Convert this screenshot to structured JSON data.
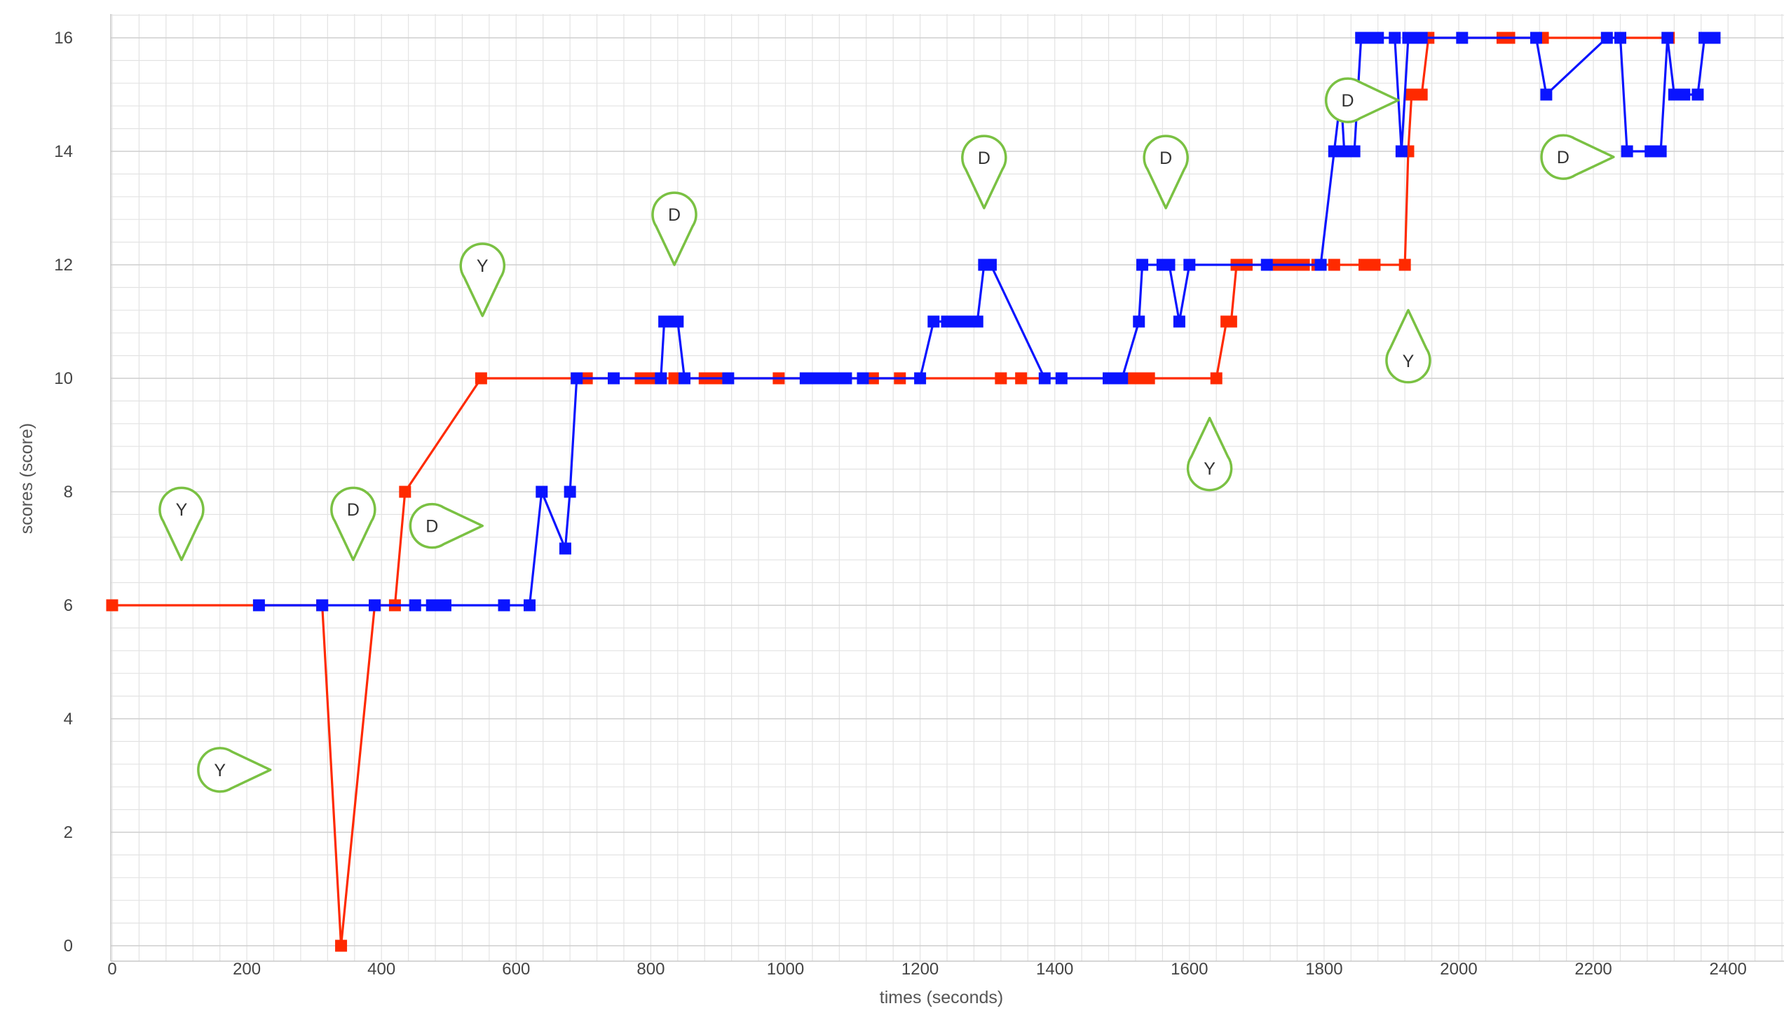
{
  "chart_data": {
    "type": "line",
    "xlabel": "times (seconds)",
    "ylabel": "scores (score)",
    "xlim": [
      0,
      2400
    ],
    "ylim": [
      0,
      16
    ],
    "x_ticks": [
      "0",
      "200",
      "400",
      "600",
      "800",
      "1000",
      "1200",
      "1400",
      "1600",
      "1800",
      "2000",
      "2200",
      "2400"
    ],
    "y_ticks": [
      "0",
      "2",
      "4",
      "6",
      "8",
      "10",
      "12",
      "14",
      "16"
    ],
    "grid": true,
    "colors": {
      "series1": "#ff2a00",
      "series2": "#0a14ff",
      "markers": "#7ac143"
    },
    "series": [
      {
        "color": "#ff2a00",
        "points": [
          [
            0,
            6
          ],
          [
            312,
            6
          ],
          [
            340,
            0
          ],
          [
            390,
            6
          ],
          [
            420,
            6
          ],
          [
            435,
            8
          ],
          [
            548,
            10
          ],
          [
            690,
            10
          ],
          [
            700,
            10
          ],
          [
            705,
            10
          ],
          [
            745,
            10
          ],
          [
            785,
            10
          ],
          [
            800,
            10
          ],
          [
            808,
            10
          ],
          [
            815,
            10
          ],
          [
            835,
            10
          ],
          [
            850,
            10
          ],
          [
            880,
            10
          ],
          [
            895,
            10
          ],
          [
            905,
            10
          ],
          [
            910,
            10
          ],
          [
            990,
            10
          ],
          [
            1130,
            10
          ],
          [
            1170,
            10
          ],
          [
            1320,
            10
          ],
          [
            1350,
            10
          ],
          [
            1495,
            10
          ],
          [
            1505,
            10
          ],
          [
            1515,
            10
          ],
          [
            1530,
            10
          ],
          [
            1540,
            10
          ],
          [
            1640,
            10
          ],
          [
            1655,
            11
          ],
          [
            1662,
            11
          ],
          [
            1670,
            12
          ],
          [
            1685,
            12
          ],
          [
            1730,
            12
          ],
          [
            1745,
            12
          ],
          [
            1755,
            12
          ],
          [
            1770,
            12
          ],
          [
            1790,
            12
          ],
          [
            1815,
            12
          ],
          [
            1860,
            12
          ],
          [
            1875,
            12
          ],
          [
            1920,
            12
          ],
          [
            1925,
            14
          ],
          [
            1930,
            15
          ],
          [
            1945,
            15
          ],
          [
            1955,
            16
          ],
          [
            2065,
            16
          ],
          [
            2075,
            16
          ],
          [
            2125,
            16
          ],
          [
            2312,
            16
          ]
        ]
      },
      {
        "color": "#0a14ff",
        "points": [
          [
            218,
            6
          ],
          [
            312,
            6
          ],
          [
            390,
            6
          ],
          [
            450,
            6
          ],
          [
            475,
            6
          ],
          [
            485,
            6
          ],
          [
            495,
            6
          ],
          [
            582,
            6
          ],
          [
            620,
            6
          ],
          [
            638,
            8
          ],
          [
            673,
            7
          ],
          [
            680,
            8
          ],
          [
            690,
            10
          ],
          [
            745,
            10
          ],
          [
            815,
            10
          ],
          [
            820,
            11
          ],
          [
            830,
            11
          ],
          [
            840,
            11
          ],
          [
            850,
            10
          ],
          [
            915,
            10
          ],
          [
            1030,
            10
          ],
          [
            1040,
            10
          ],
          [
            1050,
            10
          ],
          [
            1060,
            10
          ],
          [
            1070,
            10
          ],
          [
            1080,
            10
          ],
          [
            1090,
            10
          ],
          [
            1115,
            10
          ],
          [
            1200,
            10
          ],
          [
            1220,
            11
          ],
          [
            1240,
            11
          ],
          [
            1250,
            11
          ],
          [
            1260,
            11
          ],
          [
            1270,
            11
          ],
          [
            1285,
            11
          ],
          [
            1295,
            12
          ],
          [
            1305,
            12
          ],
          [
            1385,
            10
          ],
          [
            1410,
            10
          ],
          [
            1480,
            10
          ],
          [
            1490,
            10
          ],
          [
            1500,
            10
          ],
          [
            1525,
            11
          ],
          [
            1530,
            12
          ],
          [
            1560,
            12
          ],
          [
            1570,
            12
          ],
          [
            1585,
            11
          ],
          [
            1600,
            12
          ],
          [
            1715,
            12
          ],
          [
            1795,
            12
          ],
          [
            1815,
            14
          ],
          [
            1825,
            15
          ],
          [
            1830,
            14
          ],
          [
            1845,
            14
          ],
          [
            1850,
            15
          ],
          [
            1855,
            16
          ],
          [
            1860,
            16
          ],
          [
            1870,
            16
          ],
          [
            1880,
            16
          ],
          [
            1905,
            16
          ],
          [
            1915,
            14
          ],
          [
            1925,
            16
          ],
          [
            1935,
            16
          ],
          [
            1945,
            16
          ],
          [
            2005,
            16
          ],
          [
            2115,
            16
          ],
          [
            2130,
            15
          ],
          [
            2220,
            16
          ],
          [
            2240,
            16
          ],
          [
            2250,
            14
          ],
          [
            2285,
            14
          ],
          [
            2300,
            14
          ],
          [
            2310,
            16
          ],
          [
            2320,
            15
          ],
          [
            2335,
            15
          ],
          [
            2355,
            15
          ],
          [
            2365,
            16
          ],
          [
            2380,
            16
          ]
        ]
      }
    ],
    "annotations": [
      {
        "text": "Y",
        "x": 103,
        "y": 6.8,
        "pointer": "down"
      },
      {
        "text": "D",
        "x": 358,
        "y": 6.8,
        "pointer": "down"
      },
      {
        "text": "Y",
        "x": 550,
        "y": 11.1,
        "pointer": "down"
      },
      {
        "text": "Y",
        "x": 235,
        "y": 3.1,
        "pointer": "right"
      },
      {
        "text": "D",
        "x": 550,
        "y": 7.4,
        "pointer": "right"
      },
      {
        "text": "D",
        "x": 835,
        "y": 12.0,
        "pointer": "down"
      },
      {
        "text": "D",
        "x": 1295,
        "y": 13.0,
        "pointer": "down"
      },
      {
        "text": "D",
        "x": 1565,
        "y": 13.0,
        "pointer": "down"
      },
      {
        "text": "Y",
        "x": 1630,
        "y": 9.3,
        "pointer": "up"
      },
      {
        "text": "Y",
        "x": 1925,
        "y": 11.2,
        "pointer": "up"
      },
      {
        "text": "D",
        "x": 1910,
        "y": 14.9,
        "pointer": "right"
      },
      {
        "text": "D",
        "x": 2230,
        "y": 13.9,
        "pointer": "right"
      }
    ]
  }
}
